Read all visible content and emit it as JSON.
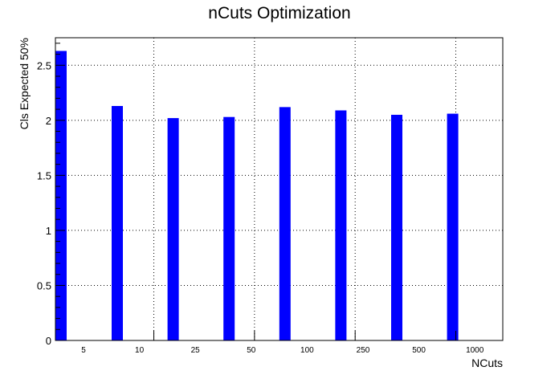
{
  "chart_data": {
    "type": "bar",
    "title": "nCuts Optimization",
    "xlabel": "NCuts",
    "ylabel": "Cls Expected 50%",
    "categories": [
      "5",
      "10",
      "25",
      "50",
      "100",
      "250",
      "500",
      "1000"
    ],
    "values": [
      2.63,
      2.13,
      2.02,
      2.03,
      2.12,
      2.09,
      2.05,
      2.06
    ],
    "ylim": [
      0,
      2.75
    ],
    "yticks": [
      "0",
      "0.5",
      "1",
      "1.5",
      "2",
      "2.5"
    ],
    "grid": true,
    "bar_color": "#0000ff"
  }
}
